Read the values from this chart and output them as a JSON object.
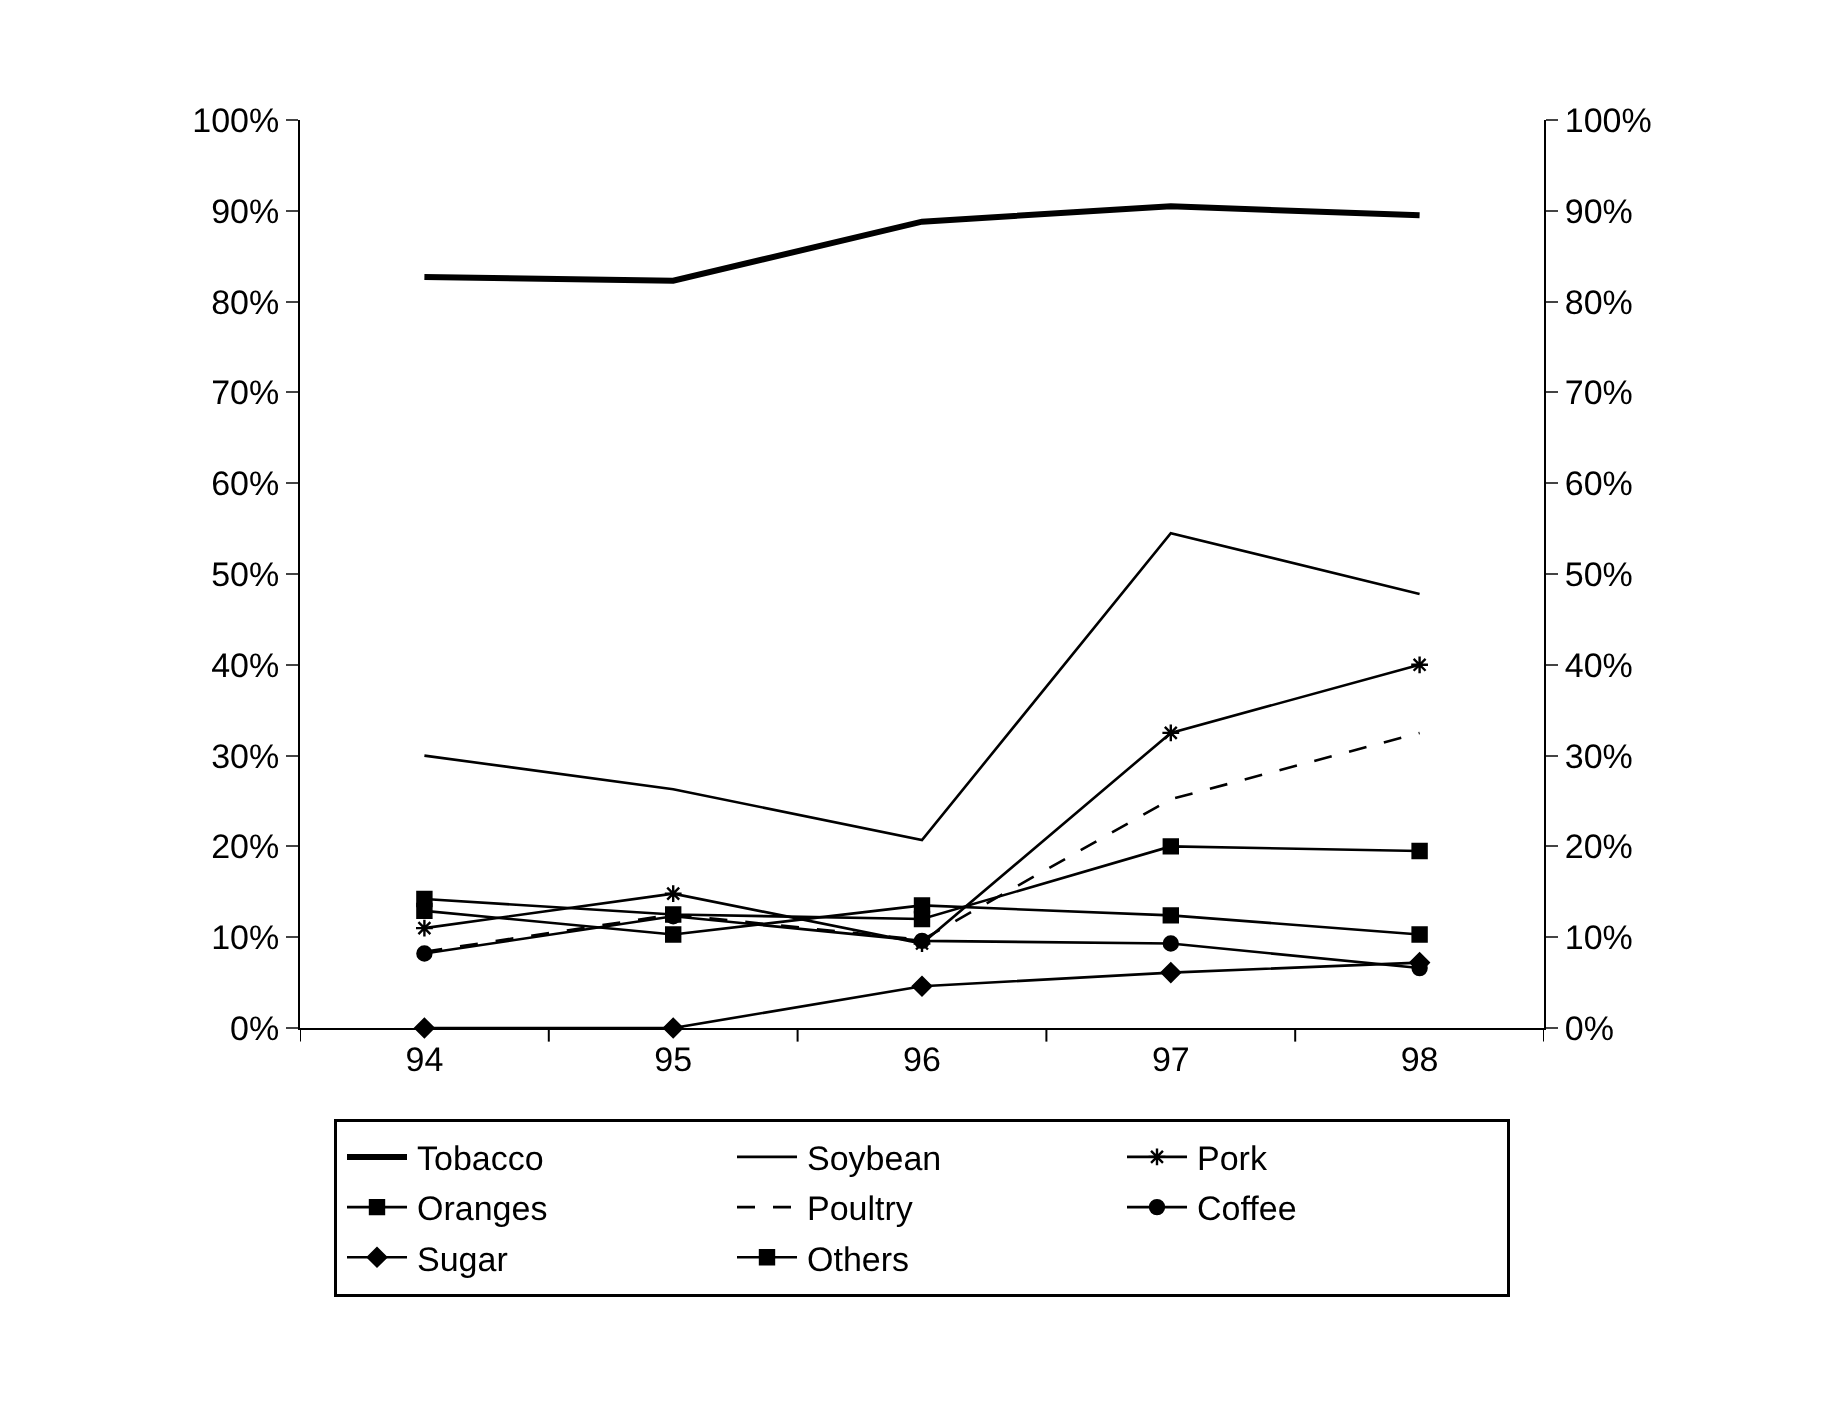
{
  "chart_data": {
    "type": "line",
    "categories": [
      "94",
      "95",
      "96",
      "97",
      "98"
    ],
    "ylim": [
      0,
      1
    ],
    "yticks": [
      {
        "value": 0,
        "label": "0%"
      },
      {
        "value": 0.1,
        "label": "10%"
      },
      {
        "value": 0.2,
        "label": "20%"
      },
      {
        "value": 0.3,
        "label": "30%"
      },
      {
        "value": 0.4,
        "label": "40%"
      },
      {
        "value": 0.5,
        "label": "50%"
      },
      {
        "value": 0.6,
        "label": "60%"
      },
      {
        "value": 0.7,
        "label": "70%"
      },
      {
        "value": 0.8,
        "label": "80%"
      },
      {
        "value": 0.9,
        "label": "90%"
      },
      {
        "value": 1,
        "label": "100%"
      }
    ],
    "y2lim": [
      0,
      1
    ],
    "y2ticks": [
      {
        "value": 0,
        "label": "0%"
      },
      {
        "value": 0.1,
        "label": "10%"
      },
      {
        "value": 0.2,
        "label": "20%"
      },
      {
        "value": 0.3,
        "label": "30%"
      },
      {
        "value": 0.4,
        "label": "40%"
      },
      {
        "value": 0.5,
        "label": "50%"
      },
      {
        "value": 0.6,
        "label": "60%"
      },
      {
        "value": 0.7,
        "label": "70%"
      },
      {
        "value": 0.8,
        "label": "80%"
      },
      {
        "value": 0.9,
        "label": "90%"
      },
      {
        "value": 1,
        "label": "100%"
      }
    ],
    "legend": "bottom",
    "series": [
      {
        "name": "Tobacco",
        "color": "#000000",
        "values": [
          0.827,
          0.823,
          0.888,
          0.905,
          0.895
        ]
      },
      {
        "name": "Soybean",
        "color": "#000000",
        "values": [
          0.3,
          0.263,
          0.207,
          0.545,
          0.478
        ]
      },
      {
        "name": "Pork",
        "color": "#000000",
        "marker": "cross",
        "values": [
          0.11,
          0.148,
          0.093,
          0.325,
          0.4
        ]
      },
      {
        "name": "Oranges",
        "color": "#000000",
        "marker": "square",
        "values": [
          0.142,
          0.125,
          0.12,
          0.2,
          0.195
        ]
      },
      {
        "name": "Poultry",
        "color": "#000000",
        "line_style": "dashed",
        "values": [
          0.084,
          0.125,
          0.097,
          0.252,
          0.325
        ]
      },
      {
        "name": "Coffee",
        "color": "#000000",
        "marker": "circle",
        "values": [
          0.082,
          0.123,
          0.096,
          0.093,
          0.066
        ]
      },
      {
        "name": "Sugar",
        "color": "#000000",
        "marker": "diamond",
        "values": [
          0.0,
          0.0,
          0.046,
          0.061,
          0.072
        ]
      },
      {
        "name": "Others",
        "color": "#000000",
        "marker": "square",
        "values": [
          0.129,
          0.103,
          0.135,
          0.124,
          0.103
        ]
      }
    ]
  }
}
